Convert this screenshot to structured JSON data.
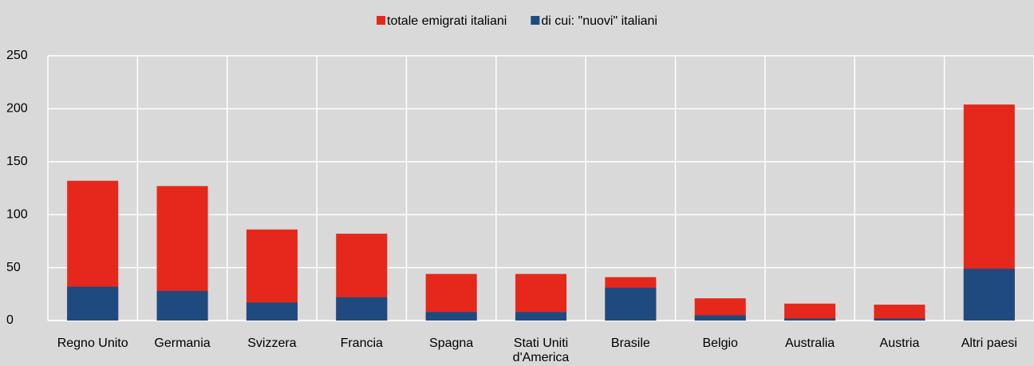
{
  "chart_data": {
    "type": "bar",
    "overlap": true,
    "categories": [
      "Regno Unito",
      "Germania",
      "Svizzera",
      "Francia",
      "Spagna",
      "Stati Uniti d'America",
      "Brasile",
      "Belgio",
      "Australia",
      "Austria",
      "Altri paesi"
    ],
    "series": [
      {
        "name": "totale emigrati italiani",
        "color": "#e5281b",
        "values": [
          132,
          127,
          86,
          82,
          44,
          44,
          41,
          21,
          16,
          15,
          204
        ]
      },
      {
        "name": "di cui: \"nuovi\" italiani",
        "color": "#1f4a80",
        "values": [
          32,
          28,
          17,
          22,
          8,
          8,
          31,
          5,
          2,
          2,
          49
        ]
      }
    ],
    "ylim": [
      0,
      250
    ],
    "yticks": [
      0,
      50,
      100,
      150,
      200,
      250
    ],
    "grid": true,
    "legend": "top"
  }
}
